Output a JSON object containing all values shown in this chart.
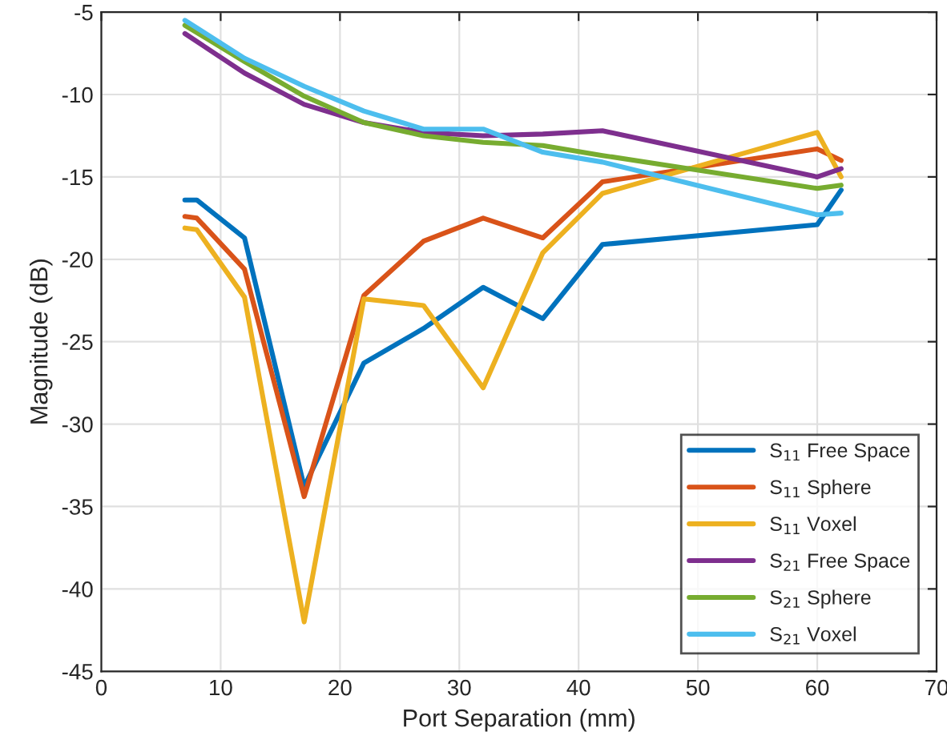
{
  "chart_data": {
    "type": "line",
    "xlabel": "Port Separation (mm)",
    "ylabel": "Magnitude (dB)",
    "xlim": [
      0,
      70
    ],
    "xticks": [
      0,
      10,
      20,
      30,
      40,
      50,
      60,
      70
    ],
    "ylim": [
      -45,
      -5
    ],
    "yticks": [
      -45,
      -40,
      -35,
      -30,
      -25,
      -20,
      -15,
      -10,
      -5
    ],
    "grid": true,
    "legend": "bottom right",
    "marker": "none",
    "line_style": "solid",
    "series": [
      {
        "name": "S$_{11}$ Free Space",
        "color": "#0072bd",
        "x": [
          7,
          8,
          12,
          17,
          22,
          27,
          32,
          37,
          42,
          60,
          62
        ],
        "values": [
          -16.4,
          -16.4,
          -18.7,
          -33.8,
          -26.3,
          -24.2,
          -21.7,
          -23.6,
          -19.1,
          -17.9,
          -15.8
        ]
      },
      {
        "name": "S$_{11}$ Sphere",
        "color": "#d95319",
        "x": [
          7,
          8,
          12,
          17,
          22,
          27,
          32,
          37,
          42,
          60,
          62
        ],
        "values": [
          -17.4,
          -17.5,
          -20.6,
          -34.4,
          -22.2,
          -18.9,
          -17.5,
          -18.7,
          -15.3,
          -13.3,
          -14.0
        ]
      },
      {
        "name": "S$_{11}$ Voxel",
        "color": "#edb120",
        "x": [
          7,
          8,
          12,
          17,
          22,
          27,
          32,
          37,
          42,
          60,
          62
        ],
        "values": [
          -18.1,
          -18.2,
          -22.3,
          -42.0,
          -22.4,
          -22.8,
          -27.8,
          -19.6,
          -16.0,
          -12.3,
          -15.0
        ]
      },
      {
        "name": "S$_{21}$ Free Space",
        "color": "#7e2f8e",
        "x": [
          7,
          12,
          17,
          22,
          27,
          32,
          37,
          42,
          60,
          62
        ],
        "values": [
          -6.3,
          -8.7,
          -10.6,
          -11.7,
          -12.3,
          -12.5,
          -12.4,
          -12.2,
          -15.0,
          -14.5
        ]
      },
      {
        "name": "S$_{21}$ Sphere",
        "color": "#77ac30",
        "x": [
          7,
          12,
          17,
          22,
          27,
          32,
          37,
          42,
          60,
          62
        ],
        "values": [
          -5.8,
          -8.0,
          -10.1,
          -11.7,
          -12.5,
          -12.9,
          -13.1,
          -13.7,
          -15.7,
          -15.5
        ]
      },
      {
        "name": "S$_{21}$ Voxel",
        "color": "#4dbeee",
        "x": [
          7,
          12,
          17,
          22,
          27,
          32,
          37,
          42,
          60,
          62
        ],
        "values": [
          -5.5,
          -7.8,
          -9.5,
          -11.0,
          -12.1,
          -12.1,
          -13.5,
          -14.1,
          -17.3,
          -17.2
        ]
      }
    ]
  }
}
